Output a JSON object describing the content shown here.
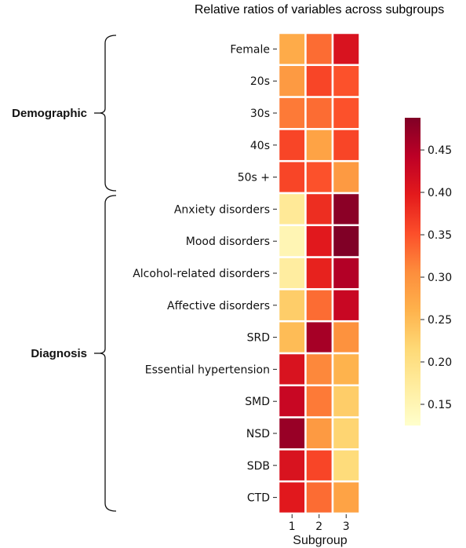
{
  "chart_data": {
    "type": "heatmap",
    "title": "Relative ratios of variables across subgroups",
    "xlabel": "Subgroup",
    "ylabel": "",
    "columns": [
      "1",
      "2",
      "3"
    ],
    "rows": [
      "Female",
      "20s",
      "30s",
      "40s",
      "50s +",
      "Anxiety disorders",
      "Mood disorders",
      "Alcohol-related disorders ",
      "Affective disorders",
      "SRD",
      "Essential hypertension",
      "SMD",
      "NSD",
      "SDB",
      "CTD"
    ],
    "values": [
      [
        0.27,
        0.33,
        0.41
      ],
      [
        0.29,
        0.36,
        0.35
      ],
      [
        0.32,
        0.33,
        0.35
      ],
      [
        0.36,
        0.28,
        0.36
      ],
      [
        0.36,
        0.35,
        0.29
      ],
      [
        0.18,
        0.38,
        0.48
      ],
      [
        0.15,
        0.4,
        0.49
      ],
      [
        0.17,
        0.39,
        0.45
      ],
      [
        0.23,
        0.33,
        0.43
      ],
      [
        0.25,
        0.46,
        0.3
      ],
      [
        0.41,
        0.31,
        0.26
      ],
      [
        0.43,
        0.32,
        0.23
      ],
      [
        0.47,
        0.29,
        0.22
      ],
      [
        0.41,
        0.36,
        0.21
      ],
      [
        0.4,
        0.33,
        0.28
      ]
    ],
    "groups": [
      {
        "label": "Demographic",
        "rows": [
          "Female",
          "20s",
          "30s",
          "40s",
          "50s +"
        ]
      },
      {
        "label": "Diagnosis",
        "rows": [
          "Anxiety disorders",
          "Mood disorders",
          "Alcohol-related disorders ",
          "Affective disorders",
          "SRD",
          "Essential hypertension",
          "SMD",
          "NSD",
          "SDB",
          "CTD"
        ]
      }
    ],
    "colorbar": {
      "colormap": "YlOrRd",
      "range": [
        0.125,
        0.488
      ],
      "ticks": [
        "0.15",
        "0.20",
        "0.25",
        "0.30",
        "0.35",
        "0.40",
        "0.45"
      ]
    }
  }
}
